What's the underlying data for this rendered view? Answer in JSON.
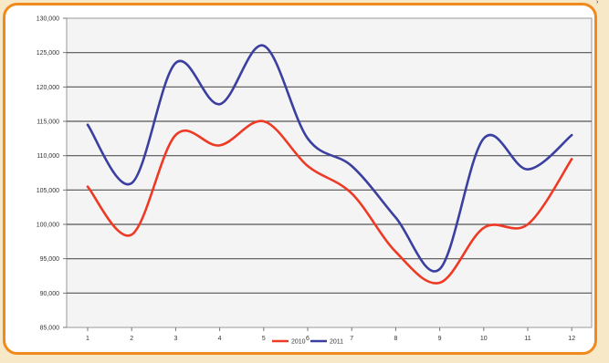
{
  "chart_data": {
    "type": "line",
    "title": "",
    "xlabel": "",
    "ylabel": "",
    "x": [
      1,
      2,
      3,
      4,
      5,
      6,
      7,
      8,
      9,
      10,
      11,
      12
    ],
    "ylim": [
      85000,
      130000
    ],
    "yticks": [
      85000,
      90000,
      95000,
      100000,
      105000,
      110000,
      115000,
      120000,
      125000,
      130000
    ],
    "ytick_labels": [
      "85,000",
      "90,000",
      "95,000",
      "100,000",
      "105,000",
      "110,000",
      "115,000",
      "120,000",
      "125,000",
      "130,000"
    ],
    "grid": true,
    "legend_position": "bottom",
    "series": [
      {
        "name": "2010",
        "color": "#ee3a24",
        "values": [
          105500,
          98500,
          113000,
          111500,
          115000,
          108500,
          104500,
          96000,
          91500,
          99500,
          100000,
          109500
        ]
      },
      {
        "name": "2011",
        "color": "#3a3fa0",
        "values": [
          114500,
          106000,
          123500,
          117500,
          126000,
          112500,
          108500,
          101000,
          93500,
          112500,
          108000,
          113000
        ]
      }
    ]
  }
}
